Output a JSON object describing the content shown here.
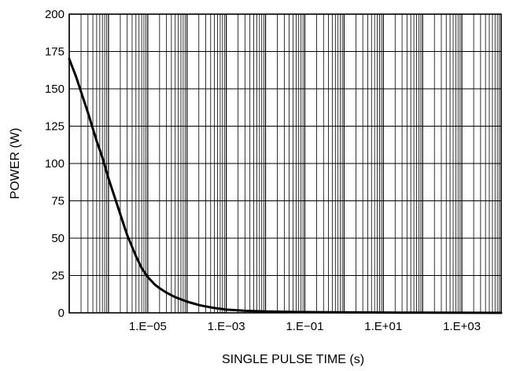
{
  "chart_data": {
    "type": "line",
    "xlabel": "SINGLE PULSE TIME (s)",
    "ylabel": "POWER (W)",
    "xscale": "log",
    "xlim": [
      1e-07,
      10000.0
    ],
    "ylim": [
      0,
      200
    ],
    "grid": true,
    "x_ticks": [
      {
        "value": 1e-05,
        "label": "1.E−05"
      },
      {
        "value": 0.001,
        "label": "1.E−03"
      },
      {
        "value": 0.1,
        "label": "1.E−01"
      },
      {
        "value": 10,
        "label": "1.E+01"
      },
      {
        "value": 1000,
        "label": "1.E+03"
      }
    ],
    "y_ticks": [
      {
        "value": 0,
        "label": "0"
      },
      {
        "value": 25,
        "label": "25"
      },
      {
        "value": 50,
        "label": "50"
      },
      {
        "value": 75,
        "label": "75"
      },
      {
        "value": 100,
        "label": "100"
      },
      {
        "value": 125,
        "label": "125"
      },
      {
        "value": 150,
        "label": "150"
      },
      {
        "value": 175,
        "label": "175"
      },
      {
        "value": 200,
        "label": "200"
      }
    ],
    "series": [
      {
        "x": [
          1e-07,
          1.5e-07,
          2e-07,
          3e-07,
          5e-07,
          7e-07,
          1e-06,
          1.5e-06,
          2e-06,
          3e-06,
          5e-06,
          7e-06,
          1e-05,
          1.5e-05,
          2e-05,
          3e-05,
          5e-05,
          0.0001,
          0.0002,
          0.0005,
          0.001,
          0.003,
          0.01,
          0.1,
          1,
          10,
          100,
          1000,
          10000.0
        ],
        "y": [
          170,
          158,
          148,
          134,
          115,
          104,
          90,
          76,
          66,
          52,
          38,
          30,
          24,
          19,
          16.5,
          13.5,
          10.5,
          7.5,
          5.2,
          3.2,
          2.2,
          1.4,
          0.9,
          0.5,
          0.3,
          0.2,
          0.1,
          0.05,
          0.03
        ]
      }
    ]
  }
}
